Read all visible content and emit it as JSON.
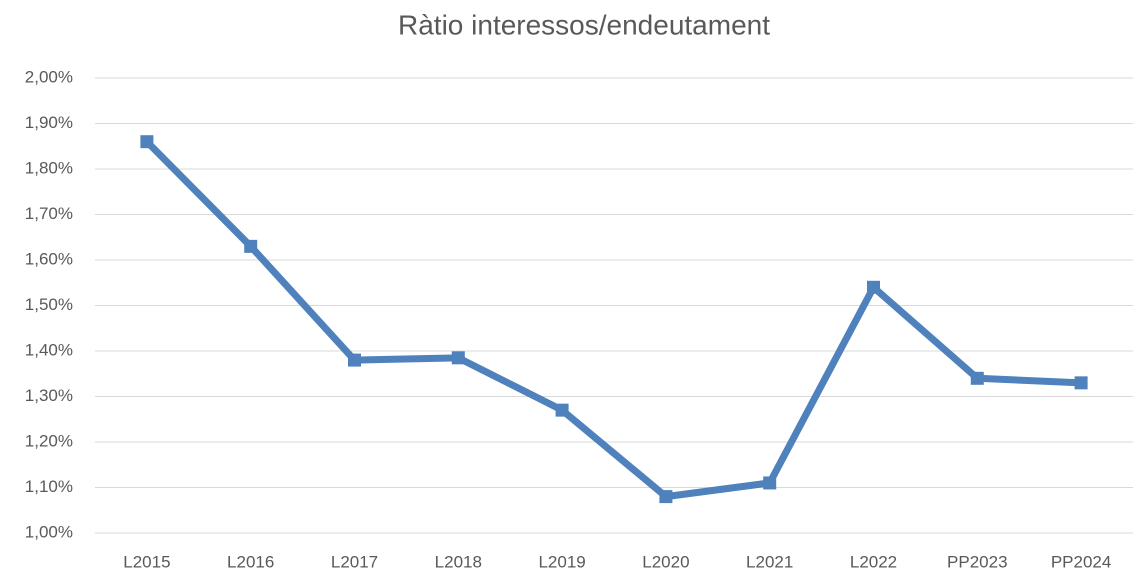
{
  "chart_data": {
    "type": "line",
    "title": "Ràtio interessos/endeutament",
    "categories": [
      "L2015",
      "L2016",
      "L2017",
      "L2018",
      "L2019",
      "L2020",
      "L2021",
      "L2022",
      "PP2023",
      "PP2024"
    ],
    "series": [
      {
        "name": "Ràtio interessos/endeutament",
        "color": "#4f81bd",
        "values": [
          1.86,
          1.63,
          1.38,
          1.385,
          1.27,
          1.08,
          1.11,
          1.54,
          1.34,
          1.33
        ]
      }
    ],
    "ylim": [
      1.0,
      2.0
    ],
    "yticks": [
      {
        "value": 1.0,
        "label": "1,00%"
      },
      {
        "value": 1.1,
        "label": "1,10%"
      },
      {
        "value": 1.2,
        "label": "1,20%"
      },
      {
        "value": 1.3,
        "label": "1,30%"
      },
      {
        "value": 1.4,
        "label": "1,40%"
      },
      {
        "value": 1.5,
        "label": "1,50%"
      },
      {
        "value": 1.6,
        "label": "1,60%"
      },
      {
        "value": 1.7,
        "label": "1,70%"
      },
      {
        "value": 1.8,
        "label": "1,80%"
      },
      {
        "value": 1.9,
        "label": "1,90%"
      },
      {
        "value": 2.0,
        "label": "2,00%"
      }
    ],
    "grid": true
  }
}
